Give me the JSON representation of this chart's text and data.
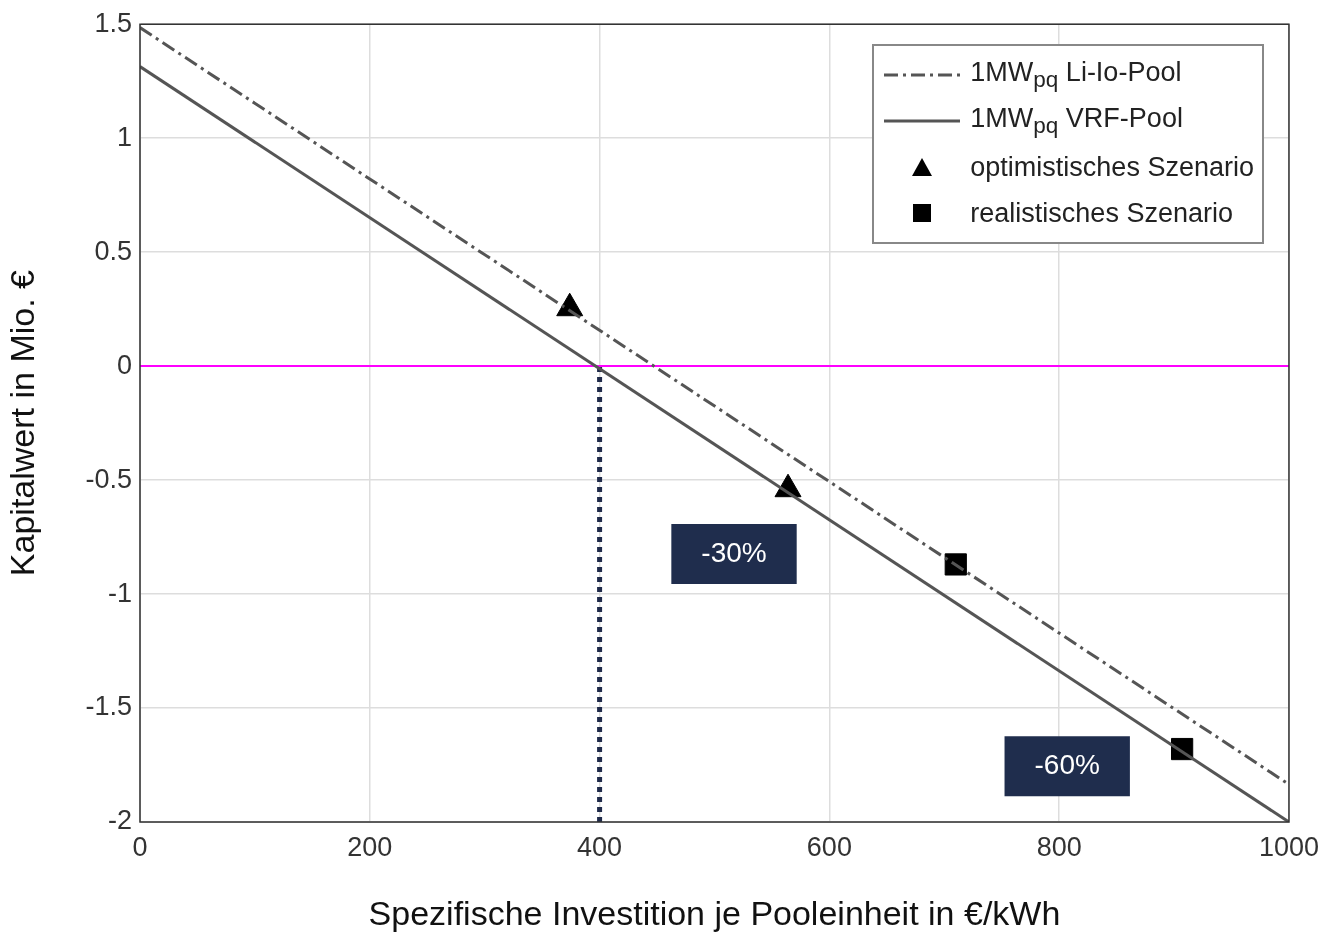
{
  "chart_data": {
    "type": "line",
    "xlabel": "Spezifische Investition je Pooleinheit in €/kWh",
    "ylabel": "Kapitalwert in Mio. €",
    "xlim": [
      0,
      1000
    ],
    "xticks": [
      0,
      200,
      400,
      600,
      800,
      1000
    ],
    "ylim": [
      -2,
      1.5
    ],
    "yticks": [
      -2,
      -1.5,
      -1,
      -0.5,
      0,
      0.5,
      1,
      1.5
    ],
    "grid": true,
    "legend": "top right",
    "series": [
      {
        "name": "1MW$_{pq}$ Li-Io-Pool",
        "type": "line",
        "color": "#555555",
        "line_style": "dashed",
        "marker": "none",
        "x": [
          0,
          1000
        ],
        "values": [
          1.485,
          -1.835
        ]
      },
      {
        "name": "1MW$_{pq}$ VRF-Pool",
        "type": "line",
        "color": "#555555",
        "line_style": "solid",
        "marker": "none",
        "x": [
          0,
          1000
        ],
        "values": [
          1.314,
          -2.0
        ]
      },
      {
        "name": "optimistisches Szenario",
        "type": "scatter",
        "color": "#000000",
        "marker": "triangle",
        "x": [
          374,
          564
        ],
        "values": [
          0.254,
          -0.54
        ]
      },
      {
        "name": "realistisches Szenario",
        "type": "scatter",
        "color": "#000000",
        "marker": "square",
        "x": [
          710,
          907
        ],
        "values": [
          -0.87,
          -1.68
        ]
      }
    ],
    "ref_lines": [
      {
        "axis": "y",
        "value": 0,
        "color": "#ff00ff",
        "line_style": "solid"
      },
      {
        "axis": "x",
        "value": 400,
        "color": "#1f2a4a",
        "line_style": "dotted"
      }
    ],
    "annotations": [
      "-30%",
      "-60%"
    ]
  }
}
